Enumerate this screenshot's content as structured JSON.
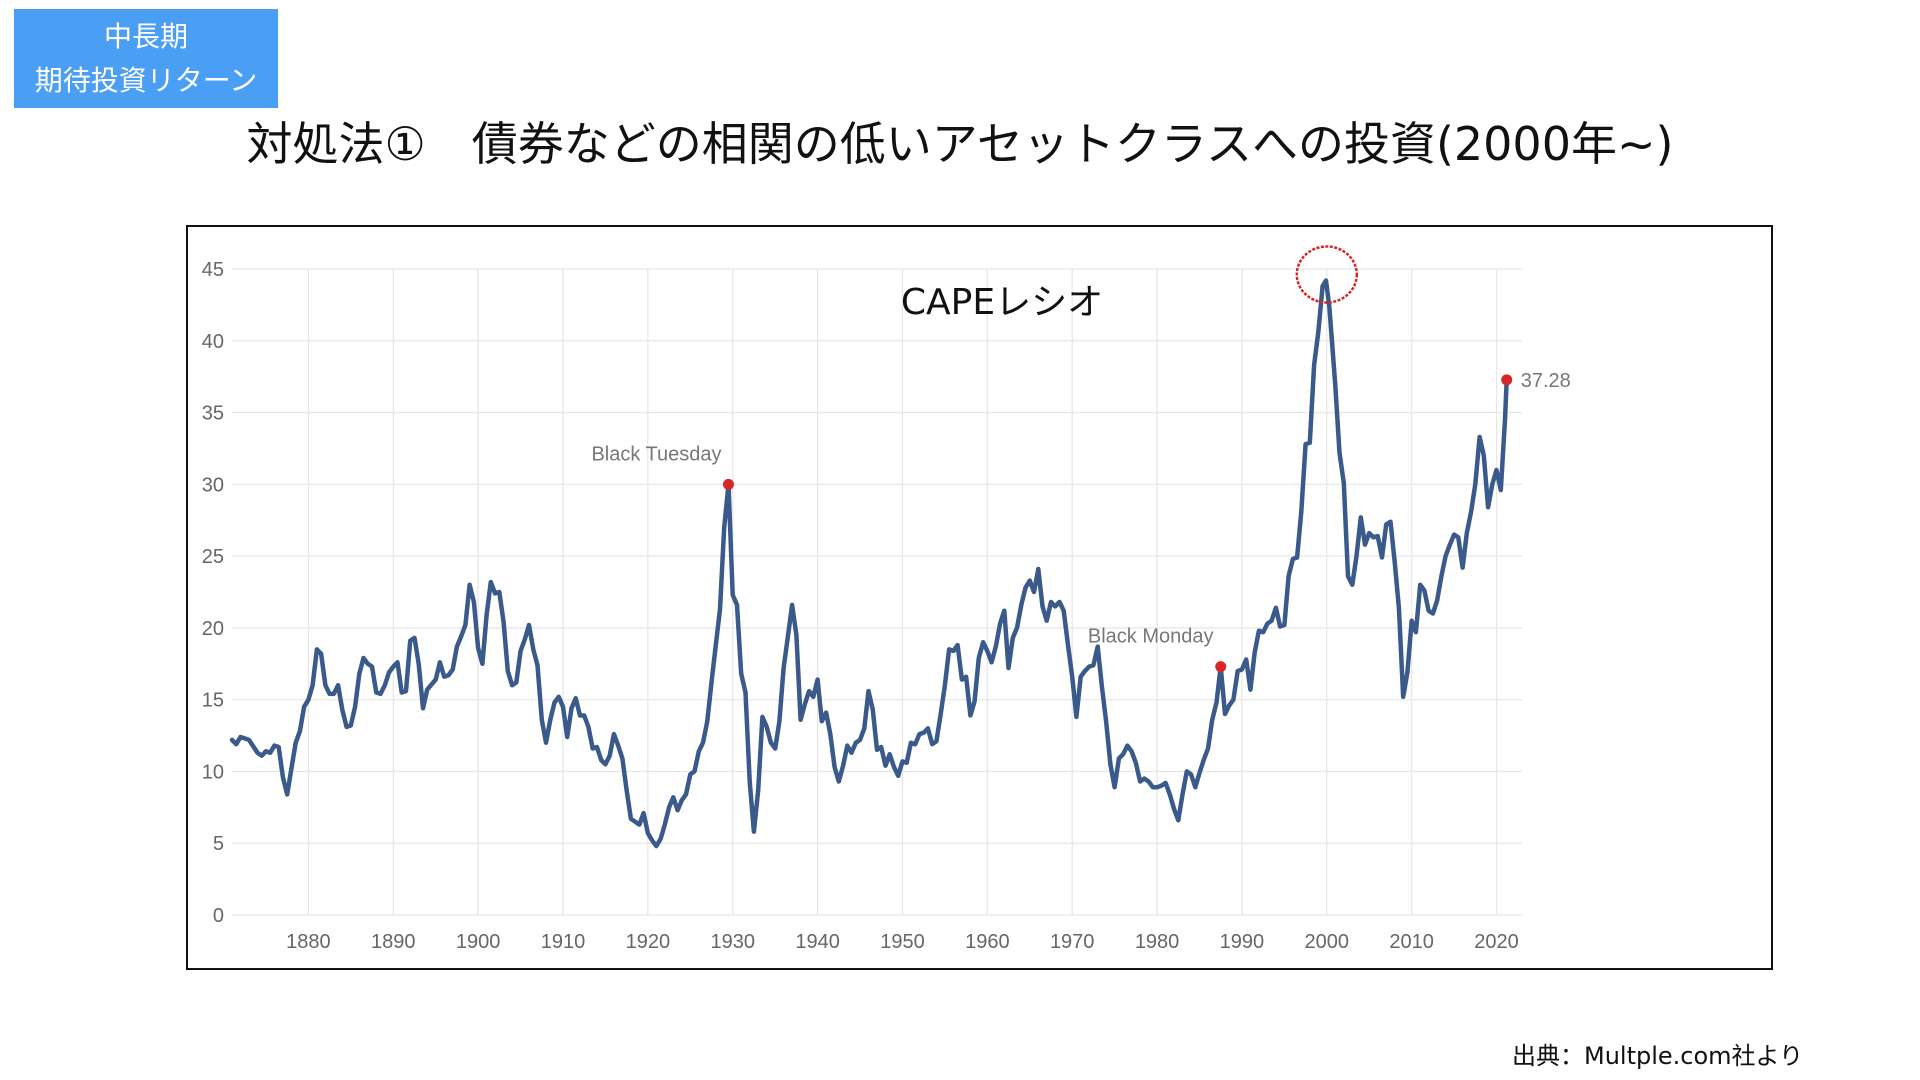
{
  "badge": {
    "line1": "中長期",
    "line2": "期待投資リターン"
  },
  "slide_title": "対処法①　債券などの相関の低いアセットクラスへの投資(2000年~)",
  "source_note": "出典：Multple.com社より",
  "colors": {
    "badge": "#4a9ff5",
    "series": "#3a5a8c",
    "marker": "#d62728",
    "highlight_circle": "#d62728",
    "grid": "#e6e6e6"
  },
  "chart_data": {
    "type": "line",
    "title": "CAPEレシオ",
    "xlim": [
      1871,
      2023
    ],
    "ylim": [
      0,
      45
    ],
    "grid": true,
    "x_ticks": [
      1880,
      1890,
      1900,
      1910,
      1920,
      1930,
      1940,
      1950,
      1960,
      1970,
      1980,
      1990,
      2000,
      2010,
      2020
    ],
    "y_ticks": [
      0,
      5,
      10,
      15,
      20,
      25,
      30,
      35,
      40,
      45
    ],
    "series": [
      {
        "values": [
          [
            1871.0,
            12.2
          ],
          [
            1871.5,
            11.9
          ],
          [
            1872.0,
            12.4
          ],
          [
            1873.0,
            12.2
          ],
          [
            1874.0,
            11.3
          ],
          [
            1874.5,
            11.1
          ],
          [
            1875.0,
            11.4
          ],
          [
            1875.5,
            11.3
          ],
          [
            1876.0,
            11.8
          ],
          [
            1876.5,
            11.7
          ],
          [
            1877.0,
            9.6
          ],
          [
            1877.5,
            8.4
          ],
          [
            1878.0,
            10.2
          ],
          [
            1878.5,
            12.0
          ],
          [
            1879.0,
            12.8
          ],
          [
            1879.5,
            14.5
          ],
          [
            1880.0,
            15.0
          ],
          [
            1880.5,
            16.0
          ],
          [
            1881.0,
            18.5
          ],
          [
            1881.5,
            18.2
          ],
          [
            1882.0,
            16.0
          ],
          [
            1882.5,
            15.4
          ],
          [
            1883.0,
            15.4
          ],
          [
            1883.5,
            16.0
          ],
          [
            1884.0,
            14.3
          ],
          [
            1884.5,
            13.1
          ],
          [
            1885.0,
            13.2
          ],
          [
            1885.5,
            14.5
          ],
          [
            1886.0,
            16.8
          ],
          [
            1886.5,
            17.9
          ],
          [
            1887.0,
            17.5
          ],
          [
            1887.5,
            17.3
          ],
          [
            1888.0,
            15.5
          ],
          [
            1888.5,
            15.4
          ],
          [
            1889.0,
            16.0
          ],
          [
            1889.5,
            16.9
          ],
          [
            1890.0,
            17.3
          ],
          [
            1890.5,
            17.6
          ],
          [
            1891.0,
            15.5
          ],
          [
            1891.5,
            15.6
          ],
          [
            1892.0,
            19.1
          ],
          [
            1892.5,
            19.3
          ],
          [
            1893.0,
            17.5
          ],
          [
            1893.5,
            14.4
          ],
          [
            1894.0,
            15.7
          ],
          [
            1895.0,
            16.4
          ],
          [
            1895.5,
            17.6
          ],
          [
            1896.0,
            16.6
          ],
          [
            1896.5,
            16.7
          ],
          [
            1897.0,
            17.1
          ],
          [
            1897.5,
            18.7
          ],
          [
            1898.0,
            19.4
          ],
          [
            1898.5,
            20.2
          ],
          [
            1899.0,
            23.0
          ],
          [
            1899.5,
            21.8
          ],
          [
            1900.0,
            18.6
          ],
          [
            1900.5,
            17.5
          ],
          [
            1901.0,
            20.9
          ],
          [
            1901.5,
            23.2
          ],
          [
            1902.0,
            22.4
          ],
          [
            1902.5,
            22.5
          ],
          [
            1903.0,
            20.4
          ],
          [
            1903.5,
            17.0
          ],
          [
            1904.0,
            16.0
          ],
          [
            1904.5,
            16.2
          ],
          [
            1905.0,
            18.4
          ],
          [
            1905.5,
            19.2
          ],
          [
            1906.0,
            20.2
          ],
          [
            1906.5,
            18.5
          ],
          [
            1907.0,
            17.4
          ],
          [
            1907.5,
            13.6
          ],
          [
            1908.0,
            12.0
          ],
          [
            1908.5,
            13.6
          ],
          [
            1909.0,
            14.8
          ],
          [
            1909.5,
            15.2
          ],
          [
            1910.0,
            14.5
          ],
          [
            1910.5,
            12.4
          ],
          [
            1911.0,
            14.4
          ],
          [
            1911.5,
            15.1
          ],
          [
            1912.0,
            13.9
          ],
          [
            1912.5,
            13.9
          ],
          [
            1913.0,
            13.1
          ],
          [
            1913.5,
            11.6
          ],
          [
            1914.0,
            11.7
          ],
          [
            1914.5,
            10.8
          ],
          [
            1915.0,
            10.5
          ],
          [
            1915.5,
            11.1
          ],
          [
            1916.0,
            12.6
          ],
          [
            1916.5,
            11.8
          ],
          [
            1917.0,
            10.9
          ],
          [
            1917.5,
            8.7
          ],
          [
            1918.0,
            6.7
          ],
          [
            1918.5,
            6.5
          ],
          [
            1919.0,
            6.3
          ],
          [
            1919.5,
            7.1
          ],
          [
            1920.0,
            5.7
          ],
          [
            1920.5,
            5.2
          ],
          [
            1921.0,
            4.8
          ],
          [
            1921.5,
            5.3
          ],
          [
            1922.0,
            6.3
          ],
          [
            1922.5,
            7.5
          ],
          [
            1923.0,
            8.2
          ],
          [
            1923.5,
            7.3
          ],
          [
            1924.0,
            8.0
          ],
          [
            1924.5,
            8.4
          ],
          [
            1925.0,
            9.8
          ],
          [
            1925.5,
            10.0
          ],
          [
            1926.0,
            11.4
          ],
          [
            1926.5,
            12.0
          ],
          [
            1927.0,
            13.5
          ],
          [
            1927.5,
            16.2
          ],
          [
            1928.0,
            18.8
          ],
          [
            1928.5,
            21.3
          ],
          [
            1929.0,
            27.0
          ],
          [
            1929.5,
            30.0
          ],
          [
            1930.0,
            22.3
          ],
          [
            1930.5,
            21.6
          ],
          [
            1931.0,
            16.8
          ],
          [
            1931.5,
            15.5
          ],
          [
            1932.0,
            9.3
          ],
          [
            1932.5,
            5.8
          ],
          [
            1933.0,
            8.7
          ],
          [
            1933.5,
            13.8
          ],
          [
            1934.0,
            13.1
          ],
          [
            1934.5,
            12.0
          ],
          [
            1935.0,
            11.6
          ],
          [
            1935.5,
            13.5
          ],
          [
            1936.0,
            17.2
          ],
          [
            1936.5,
            19.4
          ],
          [
            1937.0,
            21.6
          ],
          [
            1937.5,
            19.5
          ],
          [
            1938.0,
            13.6
          ],
          [
            1938.5,
            14.7
          ],
          [
            1939.0,
            15.6
          ],
          [
            1939.5,
            15.2
          ],
          [
            1940.0,
            16.4
          ],
          [
            1940.5,
            13.5
          ],
          [
            1941.0,
            14.1
          ],
          [
            1941.5,
            12.6
          ],
          [
            1942.0,
            10.3
          ],
          [
            1942.5,
            9.3
          ],
          [
            1943.0,
            10.4
          ],
          [
            1943.5,
            11.8
          ],
          [
            1944.0,
            11.3
          ],
          [
            1944.5,
            12.0
          ],
          [
            1945.0,
            12.2
          ],
          [
            1945.5,
            13.0
          ],
          [
            1946.0,
            15.6
          ],
          [
            1946.5,
            14.3
          ],
          [
            1947.0,
            11.5
          ],
          [
            1947.5,
            11.7
          ],
          [
            1948.0,
            10.4
          ],
          [
            1948.5,
            11.2
          ],
          [
            1949.0,
            10.3
          ],
          [
            1949.5,
            9.7
          ],
          [
            1950.0,
            10.7
          ],
          [
            1950.5,
            10.6
          ],
          [
            1951.0,
            12.0
          ],
          [
            1951.5,
            11.9
          ],
          [
            1952.0,
            12.6
          ],
          [
            1952.5,
            12.7
          ],
          [
            1953.0,
            13.0
          ],
          [
            1953.5,
            11.9
          ],
          [
            1954.0,
            12.1
          ],
          [
            1954.5,
            14.0
          ],
          [
            1955.0,
            16.0
          ],
          [
            1955.5,
            18.5
          ],
          [
            1956.0,
            18.4
          ],
          [
            1956.5,
            18.8
          ],
          [
            1957.0,
            16.4
          ],
          [
            1957.5,
            16.6
          ],
          [
            1958.0,
            13.9
          ],
          [
            1958.5,
            14.9
          ],
          [
            1959.0,
            17.9
          ],
          [
            1959.5,
            19.0
          ],
          [
            1960.0,
            18.4
          ],
          [
            1960.5,
            17.6
          ],
          [
            1961.0,
            18.7
          ],
          [
            1961.5,
            20.3
          ],
          [
            1962.0,
            21.2
          ],
          [
            1962.5,
            17.2
          ],
          [
            1963.0,
            19.3
          ],
          [
            1963.5,
            20.0
          ],
          [
            1964.0,
            21.6
          ],
          [
            1964.5,
            22.8
          ],
          [
            1965.0,
            23.3
          ],
          [
            1965.5,
            22.5
          ],
          [
            1966.0,
            24.1
          ],
          [
            1966.5,
            21.5
          ],
          [
            1967.0,
            20.5
          ],
          [
            1967.5,
            21.8
          ],
          [
            1968.0,
            21.5
          ],
          [
            1968.5,
            21.8
          ],
          [
            1969.0,
            21.2
          ],
          [
            1969.5,
            18.8
          ],
          [
            1970.0,
            16.6
          ],
          [
            1970.5,
            13.8
          ],
          [
            1971.0,
            16.6
          ],
          [
            1971.5,
            17.0
          ],
          [
            1972.0,
            17.3
          ],
          [
            1972.5,
            17.4
          ],
          [
            1973.0,
            18.7
          ],
          [
            1973.5,
            15.9
          ],
          [
            1974.0,
            13.5
          ],
          [
            1974.5,
            10.5
          ],
          [
            1975.0,
            8.9
          ],
          [
            1975.5,
            10.9
          ],
          [
            1976.0,
            11.2
          ],
          [
            1976.5,
            11.8
          ],
          [
            1977.0,
            11.4
          ],
          [
            1977.5,
            10.6
          ],
          [
            1978.0,
            9.3
          ],
          [
            1978.5,
            9.5
          ],
          [
            1979.0,
            9.3
          ],
          [
            1979.5,
            8.9
          ],
          [
            1980.0,
            8.9
          ],
          [
            1980.5,
            9.0
          ],
          [
            1981.0,
            9.2
          ],
          [
            1981.5,
            8.4
          ],
          [
            1982.0,
            7.4
          ],
          [
            1982.5,
            6.6
          ],
          [
            1983.0,
            8.4
          ],
          [
            1983.5,
            10.0
          ],
          [
            1984.0,
            9.8
          ],
          [
            1984.5,
            8.9
          ],
          [
            1985.0,
            9.9
          ],
          [
            1985.5,
            10.8
          ],
          [
            1986.0,
            11.6
          ],
          [
            1986.5,
            13.6
          ],
          [
            1987.0,
            14.8
          ],
          [
            1987.5,
            17.3
          ],
          [
            1988.0,
            14.0
          ],
          [
            1988.5,
            14.6
          ],
          [
            1989.0,
            15.0
          ],
          [
            1989.5,
            17.0
          ],
          [
            1990.0,
            17.1
          ],
          [
            1990.5,
            17.8
          ],
          [
            1991.0,
            15.7
          ],
          [
            1991.5,
            18.3
          ],
          [
            1992.0,
            19.8
          ],
          [
            1992.5,
            19.7
          ],
          [
            1993.0,
            20.3
          ],
          [
            1993.5,
            20.5
          ],
          [
            1994.0,
            21.4
          ],
          [
            1994.5,
            20.1
          ],
          [
            1995.0,
            20.2
          ],
          [
            1995.5,
            23.6
          ],
          [
            1996.0,
            24.8
          ],
          [
            1996.5,
            24.9
          ],
          [
            1997.0,
            28.1
          ],
          [
            1997.5,
            32.8
          ],
          [
            1998.0,
            32.9
          ],
          [
            1998.5,
            38.3
          ],
          [
            1999.0,
            40.6
          ],
          [
            1999.5,
            43.8
          ],
          [
            1999.9,
            44.2
          ],
          [
            2000.3,
            42.4
          ],
          [
            2001.0,
            36.9
          ],
          [
            2001.5,
            32.2
          ],
          [
            2002.0,
            30.1
          ],
          [
            2002.5,
            23.6
          ],
          [
            2003.0,
            23.0
          ],
          [
            2003.5,
            25.0
          ],
          [
            2004.0,
            27.7
          ],
          [
            2004.5,
            25.8
          ],
          [
            2005.0,
            26.6
          ],
          [
            2005.5,
            26.3
          ],
          [
            2006.0,
            26.4
          ],
          [
            2006.5,
            24.9
          ],
          [
            2007.0,
            27.2
          ],
          [
            2007.5,
            27.4
          ],
          [
            2008.0,
            24.6
          ],
          [
            2008.5,
            21.4
          ],
          [
            2009.0,
            15.2
          ],
          [
            2009.5,
            16.9
          ],
          [
            2010.0,
            20.5
          ],
          [
            2010.5,
            19.7
          ],
          [
            2011.0,
            23.0
          ],
          [
            2011.5,
            22.6
          ],
          [
            2012.0,
            21.2
          ],
          [
            2012.5,
            21.0
          ],
          [
            2013.0,
            21.9
          ],
          [
            2013.5,
            23.6
          ],
          [
            2014.0,
            25.0
          ],
          [
            2014.5,
            25.8
          ],
          [
            2015.0,
            26.5
          ],
          [
            2015.5,
            26.3
          ],
          [
            2016.0,
            24.2
          ],
          [
            2016.5,
            26.6
          ],
          [
            2017.0,
            28.1
          ],
          [
            2017.5,
            30.0
          ],
          [
            2018.0,
            33.3
          ],
          [
            2018.5,
            32.0
          ],
          [
            2019.0,
            28.4
          ],
          [
            2019.5,
            30.0
          ],
          [
            2020.0,
            31.0
          ],
          [
            2020.5,
            29.6
          ],
          [
            2021.0,
            34.5
          ],
          [
            2021.2,
            37.28
          ]
        ]
      }
    ],
    "annotations": [
      {
        "label": "Black Tuesday",
        "x": 1929.5,
        "y": 30.0
      },
      {
        "label": "Black Monday",
        "x": 1987.5,
        "y": 17.3
      },
      {
        "label": "37.28",
        "x": 2021.2,
        "y": 37.28
      }
    ],
    "highlight": {
      "x": 2000.0,
      "y": 44.2
    }
  }
}
